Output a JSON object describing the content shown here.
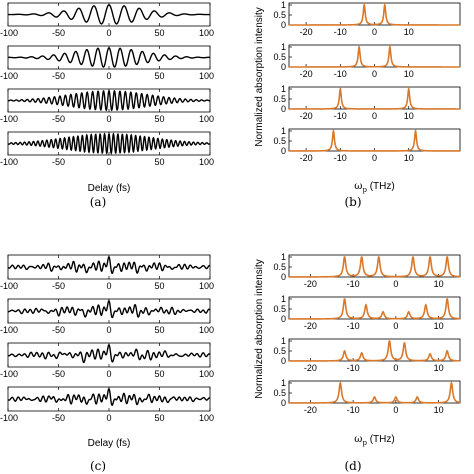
{
  "panel_labels": [
    "(a)",
    "(b)",
    "(c)",
    "(d)"
  ],
  "left_xlabel": "Delay (fs)",
  "right_ylabel": "Normalized absorption intensity",
  "right_xlabel_symbol": "ω",
  "right_xlabel_sub": "p",
  "right_xlabel_unit": " (THz)",
  "colors": {
    "trace_left": "#000000",
    "trace_right": "#d9782a",
    "axis": "#000000",
    "background": "#ffffff"
  },
  "chart_data": [
    {
      "panel": "(a)",
      "type": "line",
      "xlabel": "Delay (fs)",
      "ylabel": "",
      "xlim": [
        -100,
        100
      ],
      "xticks": [
        -100,
        -50,
        0,
        50,
        100
      ],
      "xtick_labels": [
        "-100",
        "-50",
        "0",
        "50",
        "100"
      ],
      "yticks": [],
      "series": [
        {
          "values_desc": "cosine interference beating, envelope peak at 0",
          "carrier_period_fs": 15.0,
          "envelope_width_fs": 45,
          "envelope_shape": "gaussian",
          "extra_carrier_period_fs": null
        },
        {
          "carrier_period_fs": 11.0,
          "envelope_width_fs": 48,
          "envelope_shape": "gaussian",
          "extra_carrier_period_fs": null
        },
        {
          "carrier_period_fs": 5.4,
          "envelope_width_fs": 55,
          "envelope_shape": "gaussian",
          "extra_carrier_period_fs": null
        },
        {
          "carrier_period_fs": 4.4,
          "envelope_width_fs": 60,
          "envelope_shape": "gaussian",
          "extra_carrier_period_fs": null
        }
      ]
    },
    {
      "panel": "(b)",
      "type": "line",
      "xlabel": "ωp (THz)",
      "ylabel": "Normalized absorption intensity",
      "xlim": [
        -25,
        25
      ],
      "ylim": [
        0,
        1
      ],
      "xticks": [
        -20,
        -10,
        0,
        10
      ],
      "xtick_labels": [
        "-20",
        "-10",
        "0",
        "10"
      ],
      "yticks": [
        0,
        0.5,
        1
      ],
      "ytick_labels": [
        "0",
        "0.5",
        "1"
      ],
      "series": [
        {
          "peaks": [
            {
              "x": -3.0,
              "y": 1.0
            },
            {
              "x": 3.0,
              "y": 1.0
            }
          ]
        },
        {
          "peaks": [
            {
              "x": -4.5,
              "y": 1.0
            },
            {
              "x": 4.5,
              "y": 1.0
            }
          ]
        },
        {
          "peaks": [
            {
              "x": -10.0,
              "y": 1.0
            },
            {
              "x": 10.0,
              "y": 1.0
            }
          ]
        },
        {
          "peaks": [
            {
              "x": -12.0,
              "y": 1.0
            },
            {
              "x": 12.0,
              "y": 1.0
            }
          ]
        }
      ]
    },
    {
      "panel": "(c)",
      "type": "line",
      "xlabel": "Delay (fs)",
      "ylabel": "",
      "xlim": [
        -100,
        100
      ],
      "xticks": [
        -100,
        -50,
        0,
        50,
        100
      ],
      "xtick_labels": [
        "-100",
        "-50",
        "0",
        "50",
        "100"
      ],
      "yticks": [],
      "series": [
        {
          "components_period_fs": [
            5.0,
            8.5,
            12.0,
            28.0
          ],
          "envelope_width_fs": 70
        },
        {
          "components_period_fs": [
            5.2,
            9.0,
            13.0,
            30.0
          ],
          "envelope_width_fs": 70
        },
        {
          "components_period_fs": [
            5.5,
            9.5,
            14.0,
            32.0
          ],
          "envelope_width_fs": 70
        },
        {
          "components_period_fs": [
            5.0,
            8.0,
            13.5,
            26.0
          ],
          "envelope_width_fs": 70
        }
      ]
    },
    {
      "panel": "(d)",
      "type": "line",
      "xlabel": "ωp (THz)",
      "ylabel": "Normalized absorption intensity",
      "xlim": [
        -25,
        15
      ],
      "ylim": [
        0,
        1
      ],
      "xticks": [
        -20,
        -10,
        0,
        10
      ],
      "xtick_labels": [
        "-20",
        "-10",
        "0",
        "10"
      ],
      "yticks": [
        0,
        0.5,
        1
      ],
      "ytick_labels": [
        "0",
        "0.5",
        "1"
      ],
      "series": [
        {
          "peaks": [
            {
              "x": -12,
              "y": 1.0
            },
            {
              "x": -8,
              "y": 1.0
            },
            {
              "x": -4,
              "y": 1.0
            },
            {
              "x": 4,
              "y": 1.0
            },
            {
              "x": 8,
              "y": 1.0
            },
            {
              "x": 12,
              "y": 1.0
            }
          ]
        },
        {
          "peaks": [
            {
              "x": -12,
              "y": 1.0
            },
            {
              "x": -7,
              "y": 0.7
            },
            {
              "x": -3,
              "y": 0.35
            },
            {
              "x": 3,
              "y": 0.35
            },
            {
              "x": 7,
              "y": 0.7
            },
            {
              "x": 12,
              "y": 1.0
            }
          ]
        },
        {
          "peaks": [
            {
              "x": -12,
              "y": 0.5
            },
            {
              "x": -8,
              "y": 0.4
            },
            {
              "x": -1.5,
              "y": 1.0
            },
            {
              "x": 2,
              "y": 0.9
            },
            {
              "x": 8,
              "y": 0.35
            },
            {
              "x": 12,
              "y": 0.5
            }
          ]
        },
        {
          "peaks": [
            {
              "x": -13,
              "y": 1.0
            },
            {
              "x": -5,
              "y": 0.3
            },
            {
              "x": 0,
              "y": 0.3
            },
            {
              "x": 5,
              "y": 0.3
            },
            {
              "x": 13,
              "y": 1.0
            }
          ]
        }
      ]
    }
  ]
}
